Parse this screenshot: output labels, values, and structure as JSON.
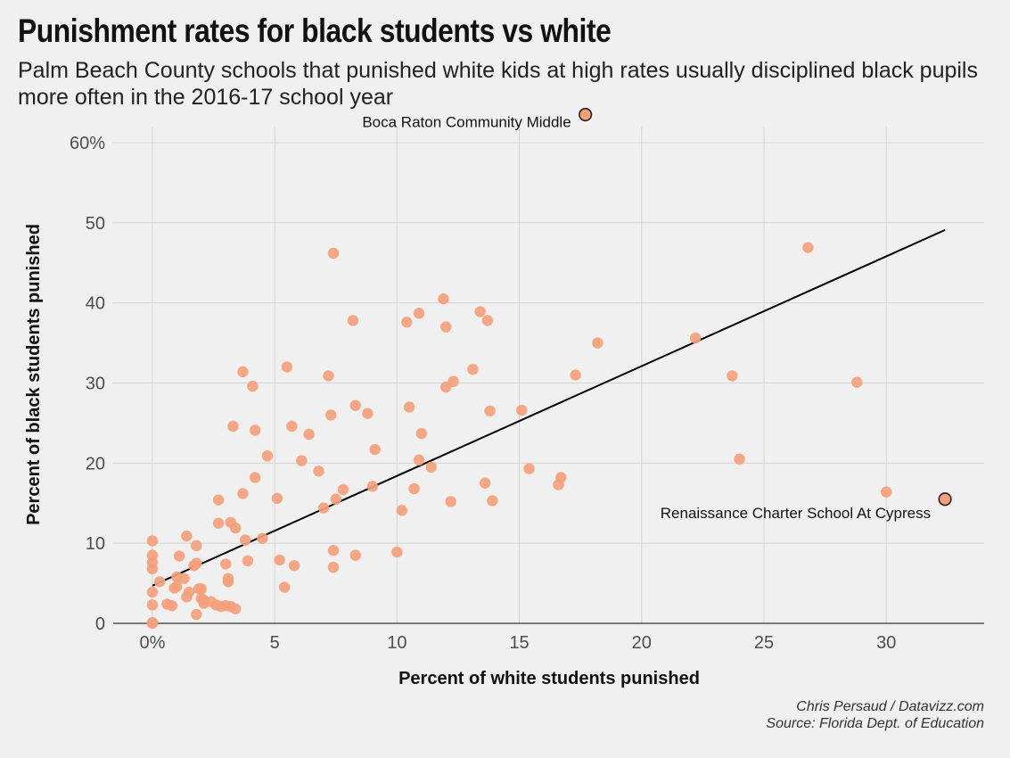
{
  "title": "Punishment rates for black students vs white",
  "subtitle": "Palm Beach County schools that punished white kids at high rates usually disciplined black pupils more often in the 2016-17 school year",
  "caption": {
    "author": "Chris Persaud / Datavizz.com",
    "source": "Source: Florida Dept. of Education"
  },
  "colors": {
    "point": "#f4a07c",
    "highlight_fill": "#f4a07c",
    "highlight_stroke": "#222222",
    "trend": "#000000",
    "grid": "#d4d4d4",
    "background": "#f0f0f0"
  },
  "chart_data": {
    "type": "scatter",
    "title": "Punishment rates for black students vs white",
    "xlabel": "Percent of white students punished",
    "ylabel": "Percent of black students punished",
    "xlim": [
      -1.6,
      34
    ],
    "ylim": [
      0,
      62
    ],
    "x_ticks": [
      0,
      5,
      10,
      15,
      20,
      25,
      30
    ],
    "x_tick_labels": [
      "0%",
      "5",
      "10",
      "15",
      "20",
      "25",
      "30"
    ],
    "y_ticks": [
      0,
      10,
      20,
      30,
      40,
      50,
      60
    ],
    "y_tick_labels": [
      "0",
      "10",
      "20",
      "30",
      "40",
      "50",
      "60%"
    ],
    "grid": true,
    "trendline": {
      "x": [
        0,
        32.4
      ],
      "y": [
        4.7,
        49.1
      ]
    },
    "highlights": [
      {
        "label": "Boca Raton Community Middle",
        "x": 17.7,
        "y": 63.5
      },
      {
        "label": "Renaissance Charter School At Cypress",
        "x": 32.4,
        "y": 15.5
      }
    ],
    "points": [
      [
        0,
        0
      ],
      [
        0,
        0.1
      ],
      [
        0,
        2.3
      ],
      [
        0,
        3.9
      ],
      [
        0,
        6.8
      ],
      [
        0,
        7.6
      ],
      [
        0,
        8.5
      ],
      [
        0,
        10.3
      ],
      [
        0.3,
        5.2
      ],
      [
        0.6,
        2.4
      ],
      [
        0.8,
        2.2
      ],
      [
        0.9,
        4.4
      ],
      [
        1.0,
        4.6
      ],
      [
        1.0,
        5.8
      ],
      [
        1.1,
        8.4
      ],
      [
        1.3,
        5.6
      ],
      [
        1.4,
        3.3
      ],
      [
        1.4,
        10.9
      ],
      [
        1.5,
        3.9
      ],
      [
        1.7,
        7.2
      ],
      [
        1.8,
        1.1
      ],
      [
        1.8,
        7.5
      ],
      [
        1.8,
        9.7
      ],
      [
        1.9,
        4.3
      ],
      [
        2.0,
        4.3
      ],
      [
        2.0,
        3.1
      ],
      [
        2.1,
        2.9
      ],
      [
        2.1,
        2.5
      ],
      [
        2.4,
        2.7
      ],
      [
        2.6,
        2.3
      ],
      [
        2.7,
        12.5
      ],
      [
        2.7,
        15.4
      ],
      [
        2.8,
        2.1
      ],
      [
        3.0,
        2.2
      ],
      [
        3.0,
        7.4
      ],
      [
        3.1,
        5.6
      ],
      [
        3.1,
        5.2
      ],
      [
        3.2,
        2.1
      ],
      [
        3.2,
        12.6
      ],
      [
        3.3,
        24.6
      ],
      [
        3.4,
        11.9
      ],
      [
        3.4,
        1.8
      ],
      [
        3.7,
        31.4
      ],
      [
        3.7,
        16.2
      ],
      [
        3.8,
        10.4
      ],
      [
        3.9,
        7.8
      ],
      [
        4.1,
        29.6
      ],
      [
        4.2,
        18.2
      ],
      [
        4.2,
        24.1
      ],
      [
        4.5,
        10.6
      ],
      [
        4.7,
        20.9
      ],
      [
        5.1,
        15.6
      ],
      [
        5.2,
        7.9
      ],
      [
        5.4,
        4.5
      ],
      [
        5.5,
        32.0
      ],
      [
        5.7,
        24.6
      ],
      [
        5.8,
        7.2
      ],
      [
        6.1,
        20.3
      ],
      [
        6.4,
        23.6
      ],
      [
        6.8,
        19.0
      ],
      [
        7.0,
        14.4
      ],
      [
        7.2,
        30.9
      ],
      [
        7.3,
        26.0
      ],
      [
        7.4,
        46.2
      ],
      [
        7.4,
        7.0
      ],
      [
        7.4,
        9.1
      ],
      [
        7.5,
        15.5
      ],
      [
        7.8,
        16.7
      ],
      [
        8.2,
        37.8
      ],
      [
        8.3,
        27.2
      ],
      [
        8.3,
        8.5
      ],
      [
        8.8,
        26.2
      ],
      [
        9.0,
        17.1
      ],
      [
        9.1,
        21.7
      ],
      [
        10.0,
        8.9
      ],
      [
        10.2,
        14.1
      ],
      [
        10.4,
        37.6
      ],
      [
        10.5,
        27.0
      ],
      [
        10.7,
        16.8
      ],
      [
        10.9,
        38.7
      ],
      [
        10.9,
        20.4
      ],
      [
        11.0,
        23.7
      ],
      [
        11.4,
        19.5
      ],
      [
        11.9,
        40.5
      ],
      [
        12.0,
        37.0
      ],
      [
        12.0,
        29.5
      ],
      [
        12.2,
        15.2
      ],
      [
        12.3,
        30.2
      ],
      [
        13.1,
        31.7
      ],
      [
        13.4,
        38.9
      ],
      [
        13.6,
        17.5
      ],
      [
        13.7,
        37.8
      ],
      [
        13.8,
        26.5
      ],
      [
        13.9,
        15.3
      ],
      [
        15.1,
        26.6
      ],
      [
        15.4,
        19.3
      ],
      [
        16.6,
        17.3
      ],
      [
        16.7,
        18.2
      ],
      [
        17.3,
        31.0
      ],
      [
        18.2,
        35.0
      ],
      [
        22.2,
        35.6
      ],
      [
        23.7,
        30.9
      ],
      [
        24.0,
        20.5
      ],
      [
        26.8,
        46.9
      ],
      [
        28.8,
        30.1
      ],
      [
        30.0,
        16.4
      ]
    ]
  }
}
